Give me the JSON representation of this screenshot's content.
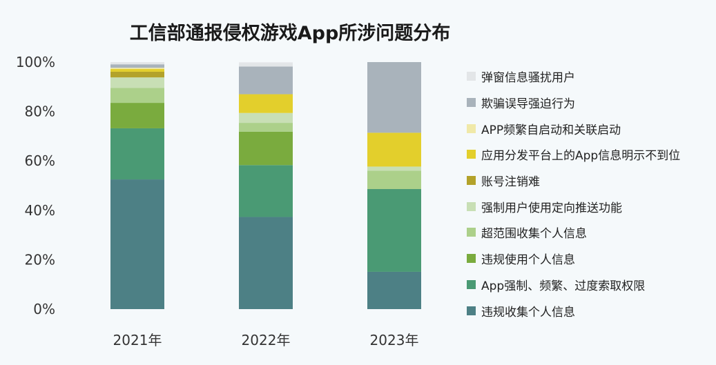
{
  "chart_data": {
    "type": "bar",
    "stacked": true,
    "title": "工信部通报侵权游戏App所涉问题分布",
    "xlabel": "",
    "ylabel": "",
    "ylim": [
      0,
      100
    ],
    "yticks": [
      "0%",
      "20%",
      "40%",
      "60%",
      "80%",
      "100%"
    ],
    "categories": [
      "2021年",
      "2022年",
      "2023年"
    ],
    "legend_position": "right",
    "grid": false,
    "series": [
      {
        "name": "违规收集个人信息",
        "color": "#4d8085",
        "values": [
          52.5,
          37.3,
          15.1
        ]
      },
      {
        "name": "App强制、频繁、过度索取权限",
        "color": "#4a9a74",
        "values": [
          20.7,
          21.0,
          33.5
        ]
      },
      {
        "name": "违规使用个人信息",
        "color": "#7aab3e",
        "values": [
          10.3,
          13.5,
          0
        ]
      },
      {
        "name": "超范围收集个人信息",
        "color": "#acd08a",
        "values": [
          6.1,
          3.6,
          7.4
        ]
      },
      {
        "name": "强制用户使用定向推送功能",
        "color": "#c8dfb5",
        "values": [
          4.2,
          4.0,
          1.7
        ]
      },
      {
        "name": "账号注销难",
        "color": "#b3a22a",
        "values": [
          2.3,
          0,
          0
        ]
      },
      {
        "name": "应用分发平台上的App信息明示不到位",
        "color": "#e3cf2c",
        "values": [
          1.1,
          7.6,
          13.7
        ]
      },
      {
        "name": "APP频繁自启动和关联启动",
        "color": "#f0e9a8",
        "values": [
          0.5,
          0,
          0
        ]
      },
      {
        "name": "欺骗误导强迫行为",
        "color": "#a9b3bb",
        "values": [
          1.4,
          11.2,
          28.6
        ]
      },
      {
        "name": "弹窗信息骚扰用户",
        "color": "#e3e6e8",
        "values": [
          0.9,
          1.7,
          0
        ]
      }
    ]
  }
}
